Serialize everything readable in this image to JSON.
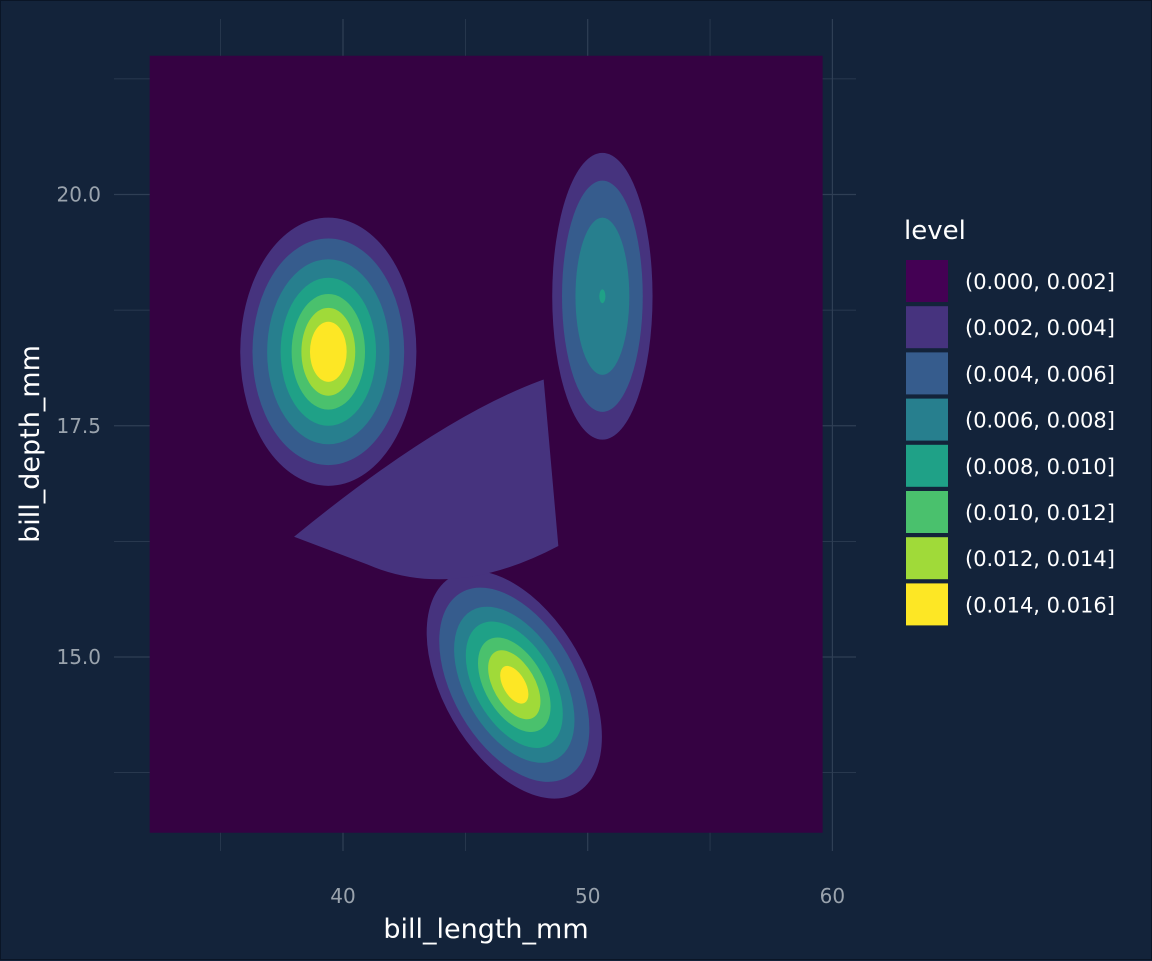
{
  "chart_data": {
    "type": "filled-contour",
    "xlabel": "bill_length_mm",
    "ylabel": "bill_depth_mm",
    "xlim": [
      32.1,
      59.6
    ],
    "ylim": [
      13.1,
      21.5
    ],
    "x_ticks": [
      40,
      50,
      60
    ],
    "x_tick_labels": [
      "40",
      "50",
      "60"
    ],
    "y_ticks": [
      15.0,
      17.5,
      20.0
    ],
    "y_tick_labels": [
      "15.0",
      "17.5",
      "20.0"
    ],
    "grid": true,
    "legend": {
      "title": "level",
      "position": "right",
      "entries": [
        {
          "label": "(0.000, 0.002]",
          "color": "#440154"
        },
        {
          "label": "(0.002, 0.004]",
          "color": "#46337e"
        },
        {
          "label": "(0.004, 0.006]",
          "color": "#365c8d"
        },
        {
          "label": "(0.006, 0.008]",
          "color": "#277f8e"
        },
        {
          "label": "(0.008, 0.010]",
          "color": "#1fa187"
        },
        {
          "label": "(0.010, 0.012]",
          "color": "#4ac16d"
        },
        {
          "label": "(0.012, 0.014]",
          "color": "#a0da39"
        },
        {
          "label": "(0.014, 0.016]",
          "color": "#fde725"
        }
      ]
    },
    "density_peaks": [
      {
        "x": 39.4,
        "y": 18.3
      },
      {
        "x": 47.0,
        "y": 14.7
      },
      {
        "x": 50.6,
        "y": 18.9
      }
    ],
    "colors": {
      "background": "#13233a",
      "panel_fill": "#350242",
      "grid": "#2f3f55"
    }
  }
}
